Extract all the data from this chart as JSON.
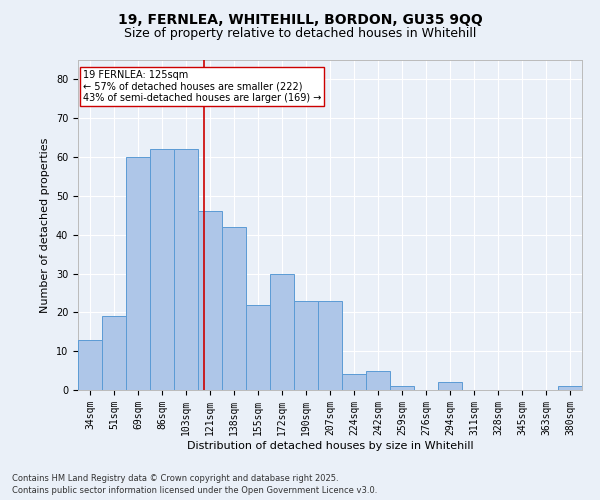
{
  "title1": "19, FERNLEA, WHITEHILL, BORDON, GU35 9QQ",
  "title2": "Size of property relative to detached houses in Whitehill",
  "xlabel": "Distribution of detached houses by size in Whitehill",
  "ylabel": "Number of detached properties",
  "categories": [
    "34sqm",
    "51sqm",
    "69sqm",
    "86sqm",
    "103sqm",
    "121sqm",
    "138sqm",
    "155sqm",
    "172sqm",
    "190sqm",
    "207sqm",
    "224sqm",
    "242sqm",
    "259sqm",
    "276sqm",
    "294sqm",
    "311sqm",
    "328sqm",
    "345sqm",
    "363sqm",
    "380sqm"
  ],
  "values": [
    13,
    19,
    60,
    62,
    62,
    46,
    42,
    22,
    30,
    23,
    23,
    4,
    5,
    1,
    0,
    2,
    0,
    0,
    0,
    0,
    1
  ],
  "bar_color": "#aec6e8",
  "bar_edge_color": "#5b9bd5",
  "bg_color": "#eaf0f8",
  "grid_color": "#ffffff",
  "vline_color": "#cc0000",
  "annotation_text": "19 FERNLEA: 125sqm\n← 57% of detached houses are smaller (222)\n43% of semi-detached houses are larger (169) →",
  "annotation_box_color": "#ffffff",
  "annotation_box_edge": "#cc0000",
  "footnote1": "Contains HM Land Registry data © Crown copyright and database right 2025.",
  "footnote2": "Contains public sector information licensed under the Open Government Licence v3.0.",
  "ylim": [
    0,
    85
  ],
  "yticks": [
    0,
    10,
    20,
    30,
    40,
    50,
    60,
    70,
    80
  ],
  "title_fontsize": 10,
  "subtitle_fontsize": 9,
  "axis_label_fontsize": 8,
  "tick_fontsize": 7,
  "annotation_fontsize": 7,
  "footnote_fontsize": 6
}
